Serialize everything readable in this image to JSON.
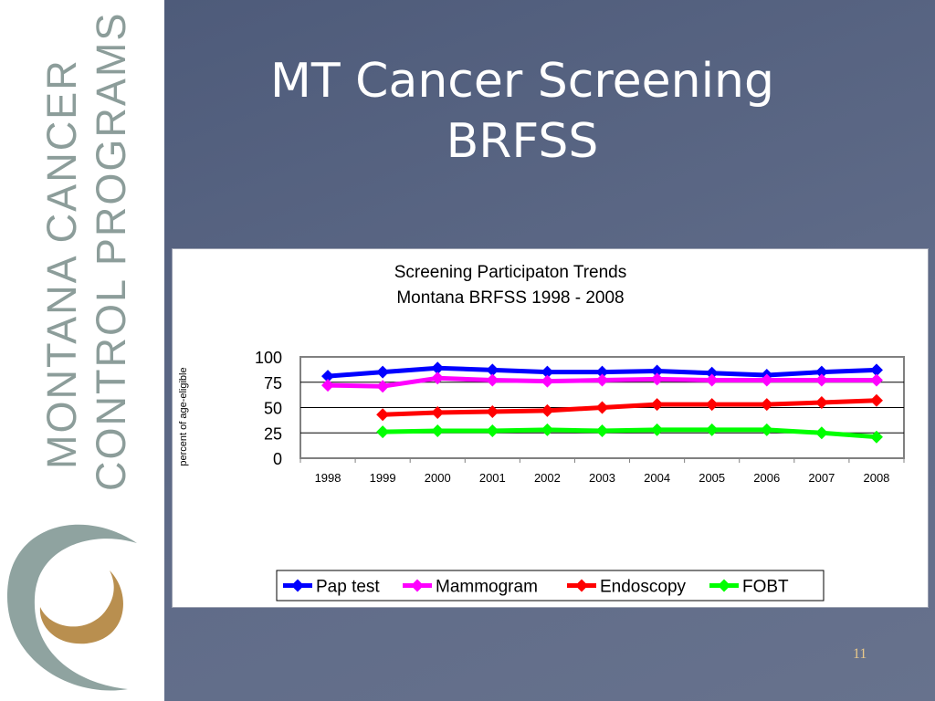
{
  "sidebar": {
    "line1": "MONTANA CANCER",
    "line2": "CONTROL PROGRAMS",
    "logo_icon": "swirl-logo-icon"
  },
  "slide": {
    "title_line1": "MT Cancer Screening",
    "title_line2": "BRFSS",
    "page_number": "11"
  },
  "colors": {
    "background": "#5b6785",
    "sidebar_text": "#8c9d9a",
    "logo_outer": "#8fa3a0",
    "logo_inner": "#b98f4f"
  },
  "chart_data": {
    "type": "line",
    "title": "Screening Participaton Trends",
    "subtitle": "Montana BRFSS 1998 - 2008",
    "xlabel": "",
    "ylabel": "percent of age-eligible",
    "ylim": [
      0,
      100
    ],
    "yticks": [
      0,
      25,
      50,
      75,
      100
    ],
    "grid": true,
    "legend": "bottom",
    "x": [
      "1998",
      "1999",
      "2000",
      "2001",
      "2002",
      "2003",
      "2004",
      "2005",
      "2006",
      "2007",
      "2008"
    ],
    "series": [
      {
        "name": "Pap test",
        "color": "#0000ff",
        "values": [
          81,
          85,
          89,
          87,
          85,
          85,
          86,
          84,
          82,
          85,
          87
        ]
      },
      {
        "name": "Mammogram",
        "color": "#ff00ff",
        "values": [
          72,
          71,
          79,
          77,
          76,
          77,
          78,
          77,
          77,
          77,
          77
        ]
      },
      {
        "name": "Endoscopy",
        "color": "#ff0000",
        "values": [
          null,
          43,
          45,
          46,
          47,
          50,
          53,
          53,
          53,
          55,
          57
        ]
      },
      {
        "name": "FOBT",
        "color": "#00ff00",
        "values": [
          null,
          26,
          27,
          27,
          28,
          27,
          28,
          28,
          28,
          25,
          21
        ]
      }
    ]
  }
}
